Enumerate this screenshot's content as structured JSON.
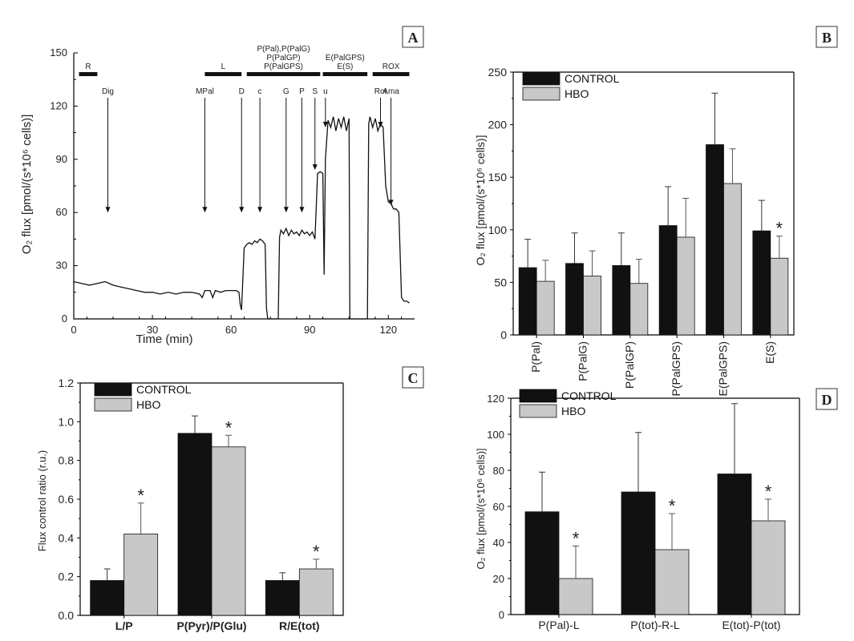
{
  "colors": {
    "control": "#111111",
    "hbo": "#c8c8c8",
    "line": "#111111"
  },
  "chart_data": [
    {
      "panel": "A",
      "type": "line",
      "xlabel_prefix": "Time (min)",
      "ylabel": "O₂ flux [pmol/(s*10⁶ cells)]",
      "xlim": [
        0,
        130
      ],
      "ylim": [
        0,
        150
      ],
      "xticks": [
        0,
        30,
        60,
        90,
        120
      ],
      "yticks": [
        0,
        30,
        60,
        90,
        120,
        150
      ],
      "states": [
        {
          "label": "R",
          "x0": 2,
          "x1": 9
        },
        {
          "label": "L",
          "x0": 50,
          "x1": 64
        },
        {
          "label": "P(Pal),P(PalG)",
          "label2": "P(PalGP)",
          "label3": "P(PalGPS)",
          "x0": 66,
          "x1": 94
        },
        {
          "label": "E(PalGPS)",
          "label2": "E(S)",
          "x0": 95,
          "x1": 112
        },
        {
          "label": "ROX",
          "x0": 114,
          "x1": 128
        }
      ],
      "additions": [
        {
          "label": "Dig",
          "x": 13,
          "y": 60
        },
        {
          "label": "MPal",
          "x": 50,
          "y": 60
        },
        {
          "label": "D",
          "x": 64,
          "y": 60
        },
        {
          "label": "c",
          "x": 71,
          "y": 60
        },
        {
          "label": "G",
          "x": 81,
          "y": 60
        },
        {
          "label": "P",
          "x": 87,
          "y": 60
        },
        {
          "label": "S",
          "x": 92,
          "y": 84
        },
        {
          "label": "u",
          "x": 96,
          "y": 108
        },
        {
          "label": "Rot",
          "x": 117,
          "y": 108
        },
        {
          "label": "Ama",
          "x": 121,
          "y": 64
        }
      ],
      "trace": [
        [
          0,
          21
        ],
        [
          3,
          20
        ],
        [
          6,
          19
        ],
        [
          9,
          20
        ],
        [
          12,
          21
        ],
        [
          15,
          19
        ],
        [
          18,
          18
        ],
        [
          21,
          17
        ],
        [
          24,
          16
        ],
        [
          27,
          15
        ],
        [
          30,
          15
        ],
        [
          33,
          14
        ],
        [
          36,
          15
        ],
        [
          39,
          14
        ],
        [
          42,
          15
        ],
        [
          45,
          15
        ],
        [
          48,
          14
        ],
        [
          49,
          12
        ],
        [
          50,
          16
        ],
        [
          52,
          16
        ],
        [
          53,
          12
        ],
        [
          54,
          16
        ],
        [
          56,
          15
        ],
        [
          58,
          16
        ],
        [
          60,
          16
        ],
        [
          62,
          16
        ],
        [
          63,
          15
        ],
        [
          63.5,
          8
        ],
        [
          64,
          5
        ],
        [
          65,
          40
        ],
        [
          66,
          42
        ],
        [
          67,
          43
        ],
        [
          68,
          42
        ],
        [
          69,
          44
        ],
        [
          70,
          43
        ],
        [
          71,
          45
        ],
        [
          72,
          44
        ],
        [
          73,
          42
        ],
        [
          73.5,
          6
        ],
        [
          74,
          0
        ],
        [
          74.5,
          0
        ],
        [
          75,
          0
        ],
        [
          76,
          0
        ],
        [
          77,
          0
        ],
        [
          78,
          0
        ],
        [
          78.5,
          46
        ],
        [
          79,
          50
        ],
        [
          80,
          48
        ],
        [
          81,
          51
        ],
        [
          82,
          47
        ],
        [
          83,
          50
        ],
        [
          84,
          48
        ],
        [
          85,
          49
        ],
        [
          86,
          47
        ],
        [
          87,
          50
        ],
        [
          88,
          48
        ],
        [
          89,
          49
        ],
        [
          90,
          47
        ],
        [
          91,
          49
        ],
        [
          92,
          45
        ],
        [
          93,
          82
        ],
        [
          94,
          83
        ],
        [
          95,
          82
        ],
        [
          95.5,
          25
        ],
        [
          96,
          90
        ],
        [
          97,
          112
        ],
        [
          98,
          108
        ],
        [
          99,
          114
        ],
        [
          100,
          106
        ],
        [
          101,
          113
        ],
        [
          102,
          108
        ],
        [
          103,
          114
        ],
        [
          104,
          106
        ],
        [
          105,
          113
        ],
        [
          105.3,
          0
        ],
        [
          105.8,
          0
        ],
        [
          106,
          0
        ],
        [
          108,
          0
        ],
        [
          110,
          0
        ],
        [
          111,
          0
        ],
        [
          112,
          0
        ],
        [
          112.5,
          110
        ],
        [
          113,
          114
        ],
        [
          114,
          108
        ],
        [
          115,
          113
        ],
        [
          116,
          106
        ],
        [
          117,
          110
        ],
        [
          118,
          108
        ],
        [
          119,
          75
        ],
        [
          120,
          66
        ],
        [
          121,
          65
        ],
        [
          122,
          62
        ],
        [
          123,
          62
        ],
        [
          124,
          60
        ],
        [
          125,
          12
        ],
        [
          126,
          10
        ],
        [
          127,
          10
        ],
        [
          128,
          9
        ]
      ]
    },
    {
      "panel": "B",
      "type": "bar",
      "ylabel": "O₂ flux [pmol/(s*10⁶ cells)]",
      "categories": [
        "P(Pal)",
        "P(PalG)",
        "P(PalGP)",
        "P(PalGPS)",
        "E(PalGPS)",
        "E(S)"
      ],
      "ylim": [
        0,
        250
      ],
      "yticks": [
        0,
        50,
        100,
        150,
        200,
        250
      ],
      "series": [
        {
          "name": "CONTROL",
          "values": [
            64,
            68,
            66,
            104,
            181,
            99
          ],
          "errors": [
            27,
            29,
            31,
            37,
            49,
            29
          ]
        },
        {
          "name": "HBO",
          "values": [
            51,
            56,
            49,
            93,
            144,
            73
          ],
          "errors": [
            20,
            24,
            23,
            37,
            33,
            21
          ]
        }
      ],
      "significance": [
        "",
        "",
        "",
        "",
        "",
        "*"
      ]
    },
    {
      "panel": "C",
      "type": "bar",
      "ylabel": "Flux control ratio (r.u.)",
      "categories": [
        "L/P",
        "P(Pyr)/P(Glu)",
        "R/E(tot)"
      ],
      "ylim": [
        0,
        1.2
      ],
      "yticks": [
        "0.0",
        "0.2",
        "0.4",
        "0.6",
        "0.8",
        "1.0",
        "1.2"
      ],
      "series": [
        {
          "name": "CONTROL",
          "values": [
            0.18,
            0.94,
            0.18
          ],
          "errors": [
            0.06,
            0.09,
            0.04
          ]
        },
        {
          "name": "HBO",
          "values": [
            0.42,
            0.87,
            0.24
          ],
          "errors": [
            0.16,
            0.06,
            0.05
          ]
        }
      ],
      "significance": [
        "*",
        "*",
        "*"
      ]
    },
    {
      "panel": "D",
      "type": "bar",
      "ylabel": "O₂ flux [pmol/(s*10⁶ cells)]",
      "categories": [
        "P(Pal)-L",
        "P(tot)-R-L",
        "E(tot)-P(tot)"
      ],
      "ylim": [
        0,
        120
      ],
      "yticks": [
        0,
        20,
        40,
        60,
        80,
        100,
        120
      ],
      "series": [
        {
          "name": "CONTROL",
          "values": [
            57,
            68,
            78
          ],
          "errors": [
            22,
            33,
            39
          ]
        },
        {
          "name": "HBO",
          "values": [
            20,
            36,
            52
          ],
          "errors": [
            18,
            20,
            12
          ]
        }
      ],
      "significance": [
        "*",
        "*",
        "*"
      ]
    }
  ]
}
